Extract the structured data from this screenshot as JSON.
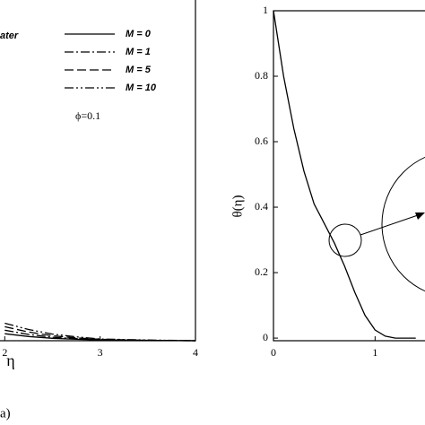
{
  "chart_data": [
    {
      "type": "line",
      "caption": "(a)",
      "xlabel": "η",
      "legend_title": "ater",
      "annotation": "ϕ=0.1",
      "x": [
        2,
        2.25,
        2.5,
        2.75,
        3,
        3.5,
        4
      ],
      "series": [
        {
          "name": "M = 0",
          "color": "#000000",
          "dash": "solid",
          "values": [
            0.02,
            0.012,
            0.007,
            0.004,
            0.002,
            0.001,
            0
          ]
        },
        {
          "name": "M = 1",
          "color": "#000000",
          "dash": "dashdot",
          "values": [
            0.03,
            0.018,
            0.01,
            0.006,
            0.003,
            0.001,
            0
          ]
        },
        {
          "name": "M = 5",
          "color": "#000000",
          "dash": "dash",
          "values": [
            0.04,
            0.025,
            0.014,
            0.008,
            0.004,
            0.001,
            0
          ]
        },
        {
          "name": "M = 10",
          "color": "#000000",
          "dash": "dashdotdot",
          "values": [
            0.05,
            0.032,
            0.019,
            0.011,
            0.005,
            0.002,
            0
          ]
        }
      ],
      "xlim": [
        1.95,
        4
      ],
      "ylim": [
        0,
        1
      ],
      "xticks": [
        2,
        3,
        4
      ]
    },
    {
      "type": "line",
      "ylabel": "θ(η)",
      "x": [
        0,
        0.1,
        0.2,
        0.3,
        0.4,
        0.5,
        0.6,
        0.7,
        0.8,
        0.9,
        1.0,
        1.1,
        1.2,
        1.3,
        1.4
      ],
      "series": [
        {
          "color": "#000000",
          "dash": "solid",
          "values": [
            1,
            0.8,
            0.64,
            0.51,
            0.41,
            0.35,
            0.29,
            0.22,
            0.14,
            0.07,
            0.025,
            0.006,
            0,
            0,
            0
          ]
        }
      ],
      "xlim": [
        0,
        1.5
      ],
      "ylim": [
        -0.008,
        1
      ],
      "xticks": [
        0,
        1
      ],
      "yticks": [
        0,
        0.2,
        0.4,
        0.6,
        0.8,
        1
      ]
    }
  ]
}
